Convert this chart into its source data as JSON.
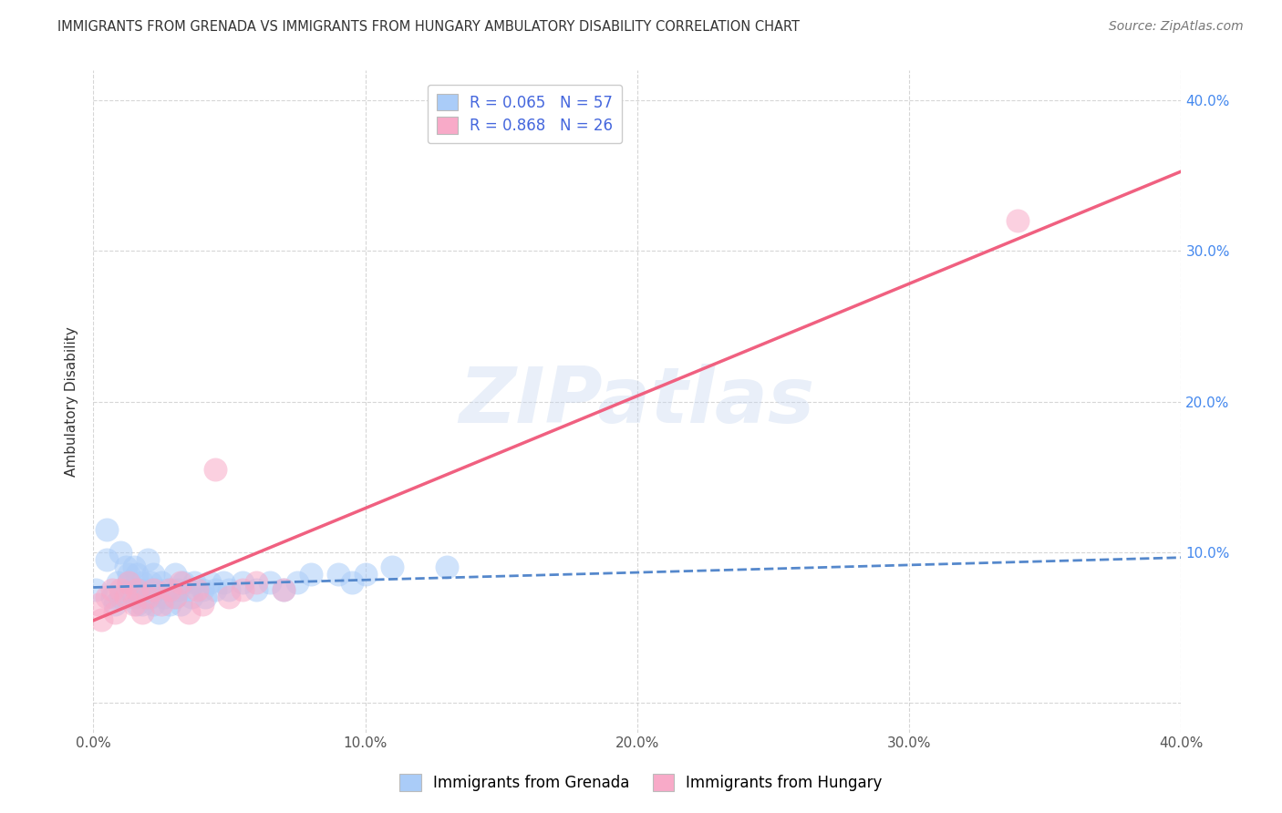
{
  "title": "IMMIGRANTS FROM GRENADA VS IMMIGRANTS FROM HUNGARY AMBULATORY DISABILITY CORRELATION CHART",
  "source": "Source: ZipAtlas.com",
  "ylabel": "Ambulatory Disability",
  "xmin": 0.0,
  "xmax": 0.4,
  "ymin": -0.02,
  "ymax": 0.42,
  "xticks": [
    0.0,
    0.1,
    0.2,
    0.3,
    0.4
  ],
  "yticks": [
    0.0,
    0.1,
    0.2,
    0.3,
    0.4
  ],
  "xtick_labels": [
    "0.0%",
    "10.0%",
    "20.0%",
    "30.0%",
    "40.0%"
  ],
  "right_ytick_labels": [
    "",
    "10.0%",
    "20.0%",
    "30.0%",
    "40.0%"
  ],
  "grenada_R": 0.065,
  "grenada_N": 57,
  "hungary_R": 0.868,
  "hungary_N": 26,
  "grenada_color": "#aaccf8",
  "hungary_color": "#f8aac8",
  "grenada_line_color": "#5588cc",
  "hungary_line_color": "#f06080",
  "watermark_text": "ZIPatlas",
  "legend_label_grenada": "Immigrants from Grenada",
  "legend_label_hungary": "Immigrants from Hungary",
  "grenada_x": [
    0.001,
    0.005,
    0.005,
    0.007,
    0.008,
    0.009,
    0.01,
    0.01,
    0.012,
    0.013,
    0.013,
    0.014,
    0.015,
    0.015,
    0.016,
    0.016,
    0.017,
    0.018,
    0.018,
    0.019,
    0.02,
    0.02,
    0.021,
    0.021,
    0.022,
    0.022,
    0.023,
    0.024,
    0.025,
    0.026,
    0.027,
    0.028,
    0.03,
    0.03,
    0.031,
    0.032,
    0.033,
    0.035,
    0.036,
    0.037,
    0.04,
    0.041,
    0.043,
    0.045,
    0.048,
    0.05,
    0.055,
    0.06,
    0.065,
    0.07,
    0.075,
    0.08,
    0.09,
    0.095,
    0.1,
    0.11,
    0.13
  ],
  "grenada_y": [
    0.075,
    0.115,
    0.095,
    0.07,
    0.065,
    0.08,
    0.1,
    0.07,
    0.09,
    0.085,
    0.08,
    0.075,
    0.09,
    0.07,
    0.085,
    0.065,
    0.075,
    0.08,
    0.065,
    0.07,
    0.095,
    0.075,
    0.08,
    0.07,
    0.065,
    0.085,
    0.075,
    0.06,
    0.08,
    0.07,
    0.075,
    0.065,
    0.085,
    0.07,
    0.075,
    0.065,
    0.08,
    0.075,
    0.07,
    0.08,
    0.075,
    0.07,
    0.08,
    0.075,
    0.08,
    0.075,
    0.08,
    0.075,
    0.08,
    0.075,
    0.08,
    0.085,
    0.085,
    0.08,
    0.085,
    0.09,
    0.09
  ],
  "hungary_x": [
    0.002,
    0.003,
    0.005,
    0.007,
    0.008,
    0.01,
    0.012,
    0.013,
    0.015,
    0.016,
    0.018,
    0.02,
    0.022,
    0.025,
    0.028,
    0.03,
    0.032,
    0.035,
    0.038,
    0.04,
    0.045,
    0.05,
    0.055,
    0.06,
    0.07,
    0.34
  ],
  "hungary_y": [
    0.065,
    0.055,
    0.07,
    0.075,
    0.06,
    0.075,
    0.07,
    0.08,
    0.065,
    0.075,
    0.06,
    0.07,
    0.075,
    0.065,
    0.075,
    0.07,
    0.08,
    0.06,
    0.075,
    0.065,
    0.155,
    0.07,
    0.075,
    0.08,
    0.075,
    0.32
  ]
}
